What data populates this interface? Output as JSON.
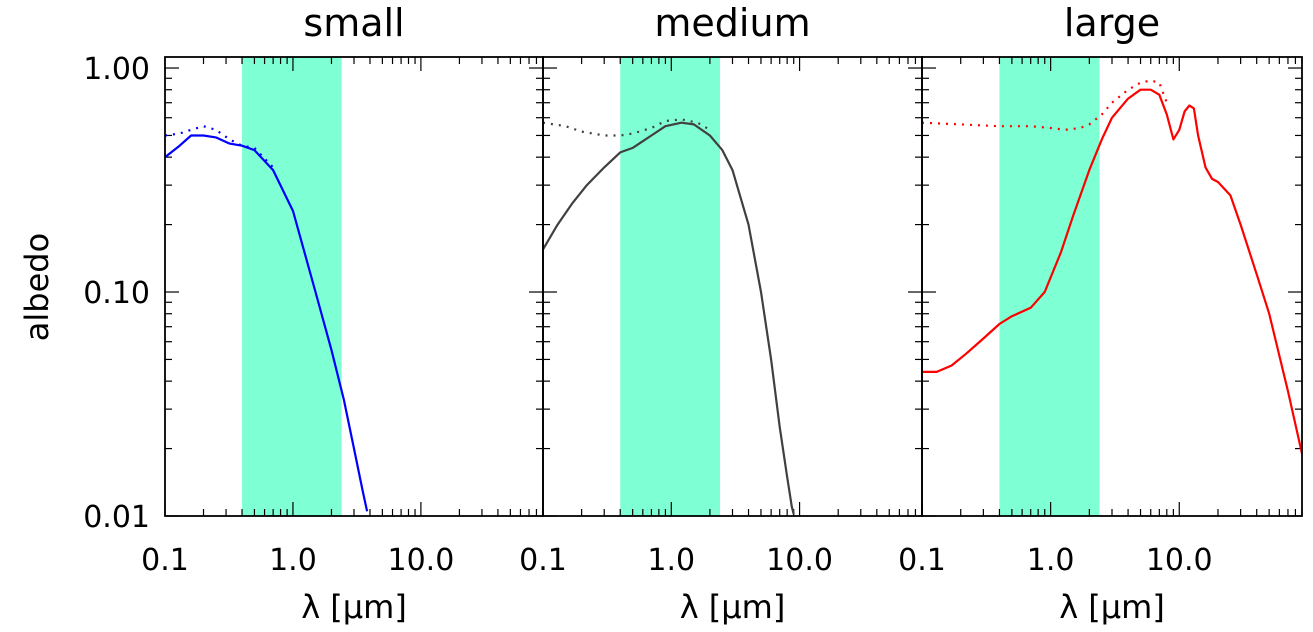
{
  "chart_data": {
    "type": "line",
    "ylabel": "albedo",
    "y_scale": "log",
    "x_scale": "log",
    "ylim": [
      0.01,
      1.12
    ],
    "xlim": [
      0.1,
      90
    ],
    "y_ticks": [
      0.01,
      0.1,
      1.0
    ],
    "y_tick_labels": [
      "0.01",
      "0.10",
      "1.00"
    ],
    "x_ticks": [
      0.1,
      1.0,
      10.0
    ],
    "x_tick_labels": [
      "0.1",
      "1.0",
      "10.0"
    ],
    "shaded_band": {
      "x_range": [
        0.4,
        2.4
      ],
      "color": "#7fffd4"
    },
    "panels": [
      {
        "title": "small",
        "xlabel": "λ [μm]",
        "color": "#0000ff",
        "series": [
          {
            "style": "solid",
            "x": [
              0.1,
              0.13,
              0.16,
              0.2,
              0.25,
              0.32,
              0.4,
              0.5,
              0.7,
              1.0,
              1.5,
              2.0,
              2.5,
              3.0,
              3.5,
              3.8
            ],
            "values": [
              0.4,
              0.45,
              0.5,
              0.5,
              0.49,
              0.46,
              0.45,
              0.43,
              0.35,
              0.23,
              0.1,
              0.055,
              0.033,
              0.02,
              0.013,
              0.0105
            ]
          },
          {
            "style": "dotted",
            "x": [
              0.1,
              0.13,
              0.16,
              0.2,
              0.25,
              0.32,
              0.4,
              0.5,
              0.7
            ],
            "values": [
              0.5,
              0.51,
              0.53,
              0.55,
              0.53,
              0.48,
              0.45,
              0.44,
              0.36
            ]
          }
        ]
      },
      {
        "title": "medium",
        "xlabel": "λ [μm]",
        "color": "#404040",
        "series": [
          {
            "style": "solid",
            "x": [
              0.1,
              0.13,
              0.17,
              0.22,
              0.3,
              0.4,
              0.5,
              0.7,
              0.9,
              1.2,
              1.5,
              2.0,
              2.5,
              3.0,
              4.0,
              5.0,
              6.0,
              7.0,
              8.0,
              8.7,
              9.0
            ],
            "values": [
              0.155,
              0.2,
              0.25,
              0.3,
              0.36,
              0.42,
              0.44,
              0.5,
              0.55,
              0.57,
              0.56,
              0.5,
              0.43,
              0.35,
              0.2,
              0.1,
              0.05,
              0.025,
              0.015,
              0.011,
              0.0102
            ]
          },
          {
            "style": "dotted",
            "x": [
              0.1,
              0.15,
              0.2,
              0.3,
              0.4,
              0.5,
              0.7,
              0.9,
              1.2,
              1.6,
              2.0
            ],
            "values": [
              0.57,
              0.55,
              0.52,
              0.5,
              0.5,
              0.51,
              0.54,
              0.58,
              0.59,
              0.57,
              0.53
            ]
          }
        ]
      },
      {
        "title": "large",
        "xlabel": "λ [μm]",
        "color": "#ff0000",
        "series": [
          {
            "style": "solid",
            "x": [
              0.1,
              0.13,
              0.17,
              0.22,
              0.3,
              0.4,
              0.5,
              0.7,
              0.9,
              1.2,
              1.5,
              2.0,
              2.5,
              3.0,
              4.0,
              5.0,
              6.0,
              7.0,
              8.0,
              9.0,
              10.0,
              11.0,
              12.0,
              13.0,
              14.0,
              16.0,
              18.0,
              20.0,
              25.0,
              30.0,
              40.0,
              50.0,
              70.0,
              90.0
            ],
            "values": [
              0.044,
              0.044,
              0.047,
              0.053,
              0.062,
              0.072,
              0.078,
              0.085,
              0.1,
              0.15,
              0.22,
              0.35,
              0.48,
              0.6,
              0.73,
              0.8,
              0.8,
              0.76,
              0.62,
              0.48,
              0.53,
              0.64,
              0.68,
              0.66,
              0.5,
              0.36,
              0.32,
              0.31,
              0.27,
              0.2,
              0.12,
              0.08,
              0.036,
              0.019
            ]
          },
          {
            "style": "dotted",
            "x": [
              0.1,
              0.2,
              0.4,
              0.7,
              1.0,
              1.3,
              1.7,
              2.0,
              2.5,
              3.0,
              4.0,
              5.0,
              6.0,
              7.0,
              8.0
            ],
            "values": [
              0.57,
              0.56,
              0.55,
              0.55,
              0.54,
              0.53,
              0.54,
              0.56,
              0.62,
              0.7,
              0.8,
              0.86,
              0.88,
              0.86,
              0.7
            ]
          }
        ]
      }
    ]
  }
}
